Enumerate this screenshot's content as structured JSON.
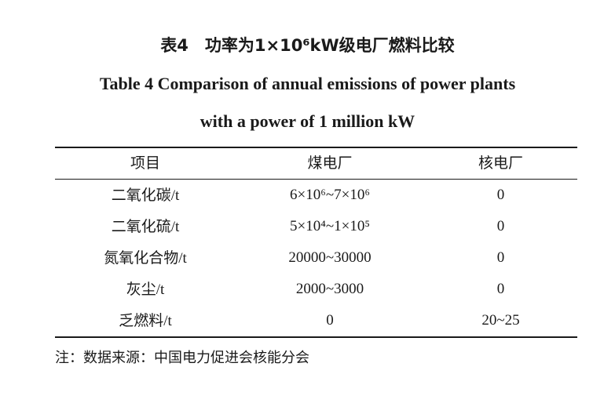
{
  "title": {
    "cn": "表4　功率为1×10⁶kW级电厂燃料比较",
    "en_line1": "Table 4   Comparison of annual emissions of power plants",
    "en_line2": "with a power of 1 million kW"
  },
  "table": {
    "headers": [
      "项目",
      "煤电厂",
      "核电厂"
    ],
    "rows": [
      {
        "item_cn": "二氧化碳",
        "unit": "/t",
        "coal": "6×10⁶~7×10⁶",
        "nuclear": "0"
      },
      {
        "item_cn": "二氧化硫",
        "unit": "/t",
        "coal": "5×10⁴~1×10⁵",
        "nuclear": "0"
      },
      {
        "item_cn": "氮氧化合物",
        "unit": "/t",
        "coal": "20000~30000",
        "nuclear": "0"
      },
      {
        "item_cn": "灰尘",
        "unit": "/t",
        "coal": "2000~3000",
        "nuclear": "0"
      },
      {
        "item_cn": "乏燃料",
        "unit": "/t",
        "coal": "0",
        "nuclear": "20~25"
      }
    ]
  },
  "note": "注：数据来源：中国电力促进会核能分会"
}
